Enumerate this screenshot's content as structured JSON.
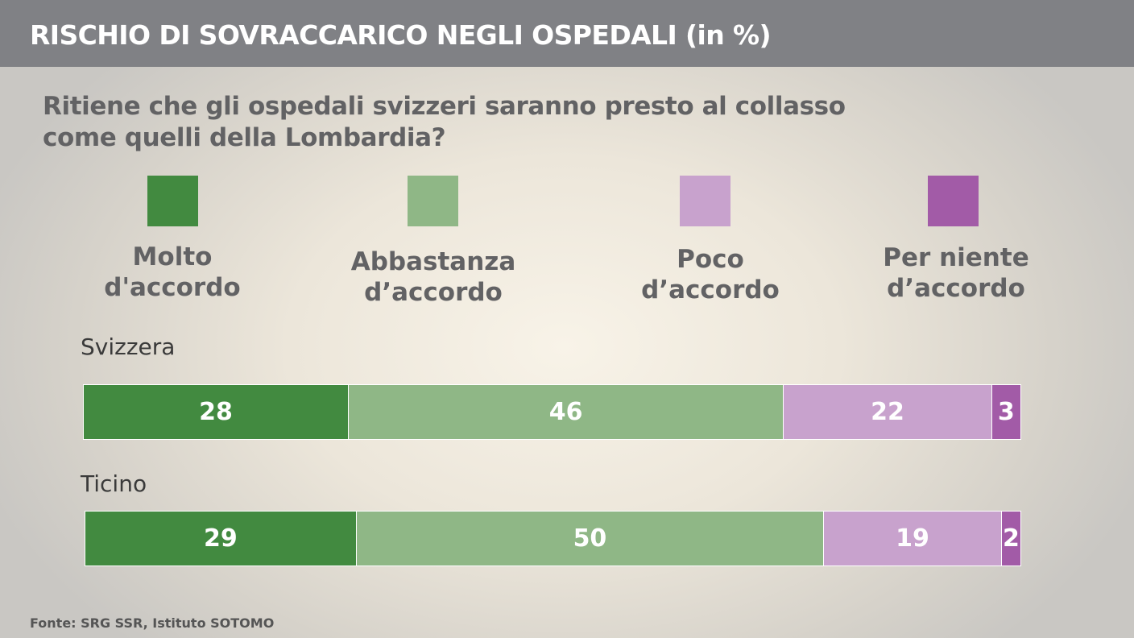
{
  "header": {
    "title": "RISCHIO DI SOVRACCARICO NEGLI OSPEDALI (in %)"
  },
  "question": {
    "line1": "Ritiene che gli ospedali svizzeri saranno presto al collasso",
    "line2": "come quelli della Lombardia?"
  },
  "legend": [
    {
      "line1": "Molto",
      "line2": "d'accordo",
      "color": "#428a40"
    },
    {
      "line1": "Abbastanza",
      "line2": "d’accordo",
      "color": "#8fb786"
    },
    {
      "line1": "Poco",
      "line2": "d’accordo",
      "color": "#c8a2cd"
    },
    {
      "line1": "Per niente",
      "line2": "d’accordo",
      "color": "#a25ba7"
    }
  ],
  "source": "Fonte: SRG SSR, Istituto SOTOMO",
  "chart_data": {
    "type": "bar",
    "orientation": "horizontal",
    "stacked": true,
    "title": "RISCHIO DI SOVRACCARICO NEGLI OSPEDALI (in %)",
    "subtitle": "Ritiene che gli ospedali svizzeri saranno presto al collasso come quelli della Lombardia?",
    "categories": [
      "Svizzera",
      "Ticino"
    ],
    "series": [
      {
        "name": "Molto d'accordo",
        "values": [
          28,
          29
        ],
        "color": "#428a40"
      },
      {
        "name": "Abbastanza d’accordo",
        "values": [
          46,
          50
        ],
        "color": "#8fb786"
      },
      {
        "name": "Poco d’accordo",
        "values": [
          22,
          19
        ],
        "color": "#c8a2cd"
      },
      {
        "name": "Per niente d’accordo",
        "values": [
          3,
          2
        ],
        "color": "#a25ba7"
      }
    ],
    "legend_position": "top",
    "grid": false,
    "data_labels": true
  }
}
